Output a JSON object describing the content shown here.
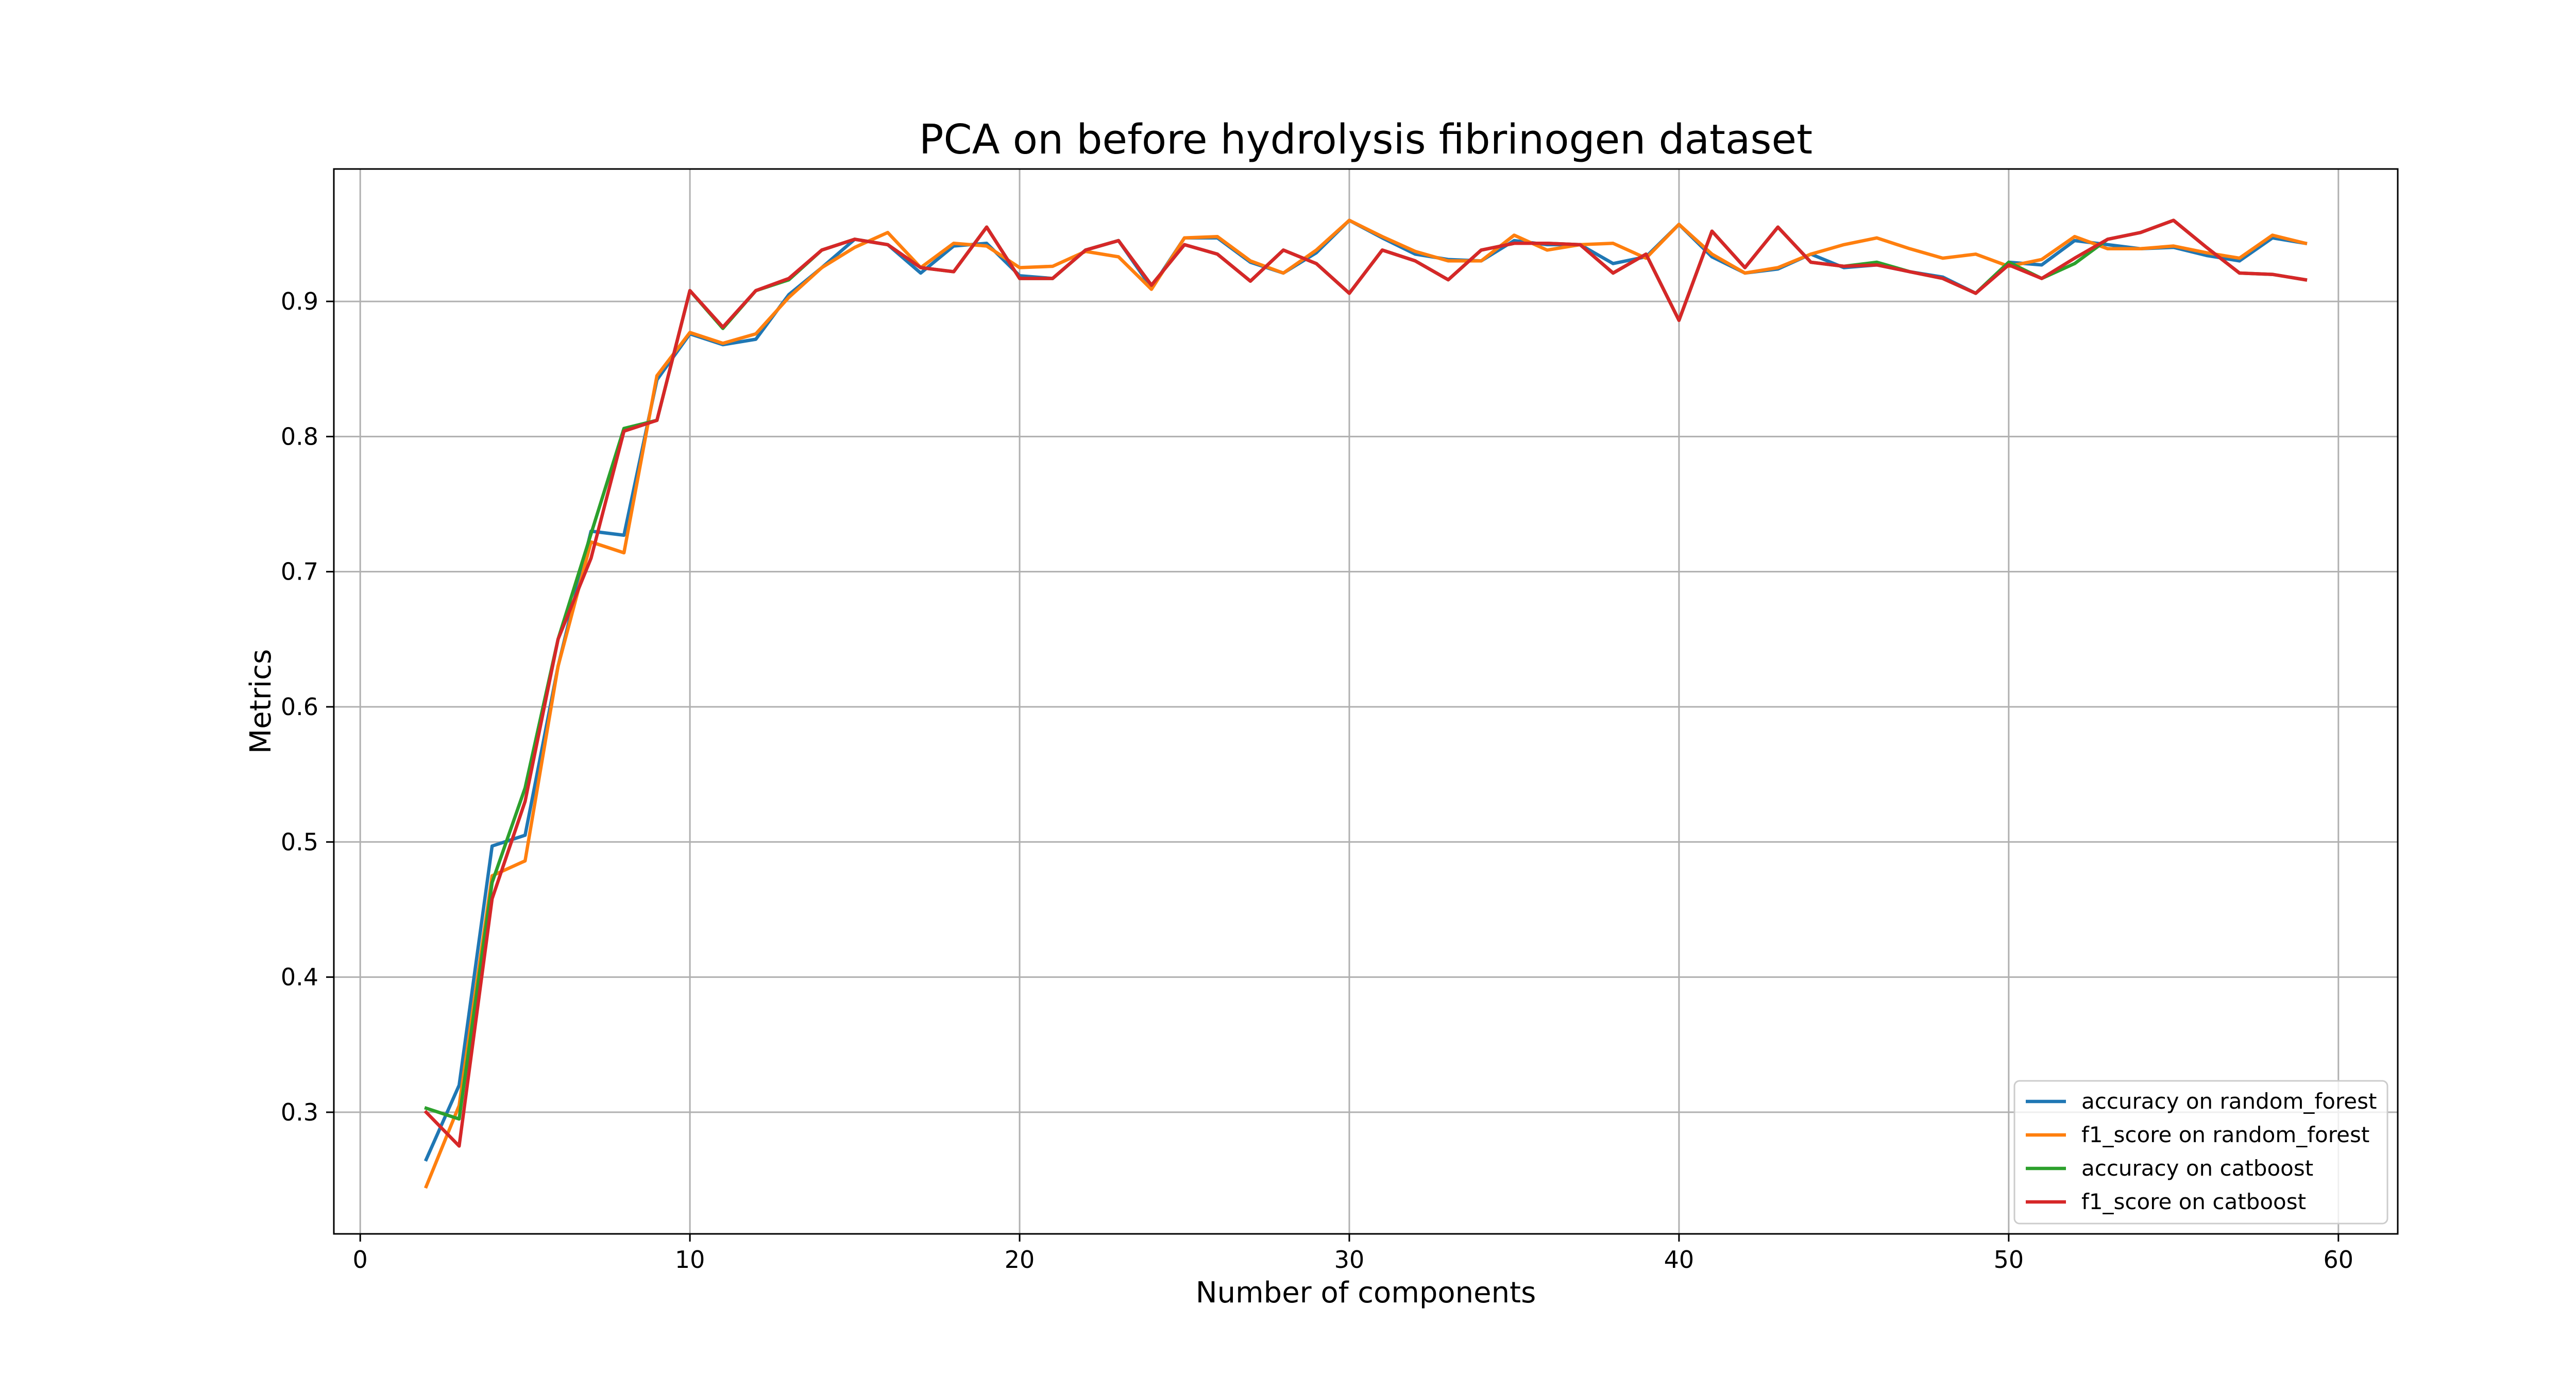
{
  "chart_data": {
    "type": "line",
    "title": "PCA on before hydrolysis fibrinogen dataset",
    "xlabel": "Number of components",
    "ylabel": "Metrics",
    "xlim": [
      -0.8,
      61.8
    ],
    "ylim": [
      0.21,
      0.998
    ],
    "xticks": [
      0,
      10,
      20,
      30,
      40,
      50,
      60
    ],
    "yticks": [
      0.3,
      0.4,
      0.5,
      0.6,
      0.7,
      0.8,
      0.9
    ],
    "grid": true,
    "legend_position": "lower-right",
    "x": [
      2,
      3,
      4,
      5,
      6,
      7,
      8,
      9,
      10,
      11,
      12,
      13,
      14,
      15,
      16,
      17,
      18,
      19,
      20,
      21,
      22,
      23,
      24,
      25,
      26,
      27,
      28,
      29,
      30,
      31,
      32,
      33,
      34,
      35,
      36,
      37,
      38,
      39,
      40,
      41,
      42,
      43,
      44,
      45,
      46,
      47,
      48,
      49,
      50,
      51,
      52,
      53,
      54,
      55,
      56,
      57,
      58,
      59
    ],
    "series": [
      {
        "name": "accuracy on random_forest",
        "color": "#1f77b4",
        "values": [
          0.265,
          0.32,
          0.497,
          0.505,
          0.63,
          0.73,
          0.727,
          0.842,
          0.876,
          0.868,
          0.872,
          0.905,
          0.925,
          0.946,
          0.942,
          0.921,
          0.941,
          0.943,
          0.919,
          0.917,
          0.938,
          0.945,
          0.91,
          0.947,
          0.947,
          0.929,
          0.921,
          0.936,
          0.96,
          0.947,
          0.935,
          0.931,
          0.93,
          0.945,
          0.942,
          0.942,
          0.928,
          0.933,
          0.957,
          0.933,
          0.921,
          0.924,
          0.935,
          0.925,
          0.927,
          0.922,
          0.918,
          0.906,
          0.929,
          0.927,
          0.945,
          0.942,
          0.939,
          0.94,
          0.934,
          0.93,
          0.947,
          0.943
        ]
      },
      {
        "name": "f1_score on random_forest",
        "color": "#ff7f0e",
        "values": [
          0.245,
          0.305,
          0.475,
          0.486,
          0.63,
          0.722,
          0.714,
          0.845,
          0.877,
          0.869,
          0.876,
          0.903,
          0.925,
          0.94,
          0.951,
          0.925,
          0.943,
          0.941,
          0.925,
          0.926,
          0.937,
          0.933,
          0.909,
          0.947,
          0.948,
          0.93,
          0.921,
          0.938,
          0.96,
          0.948,
          0.937,
          0.93,
          0.93,
          0.949,
          0.938,
          0.942,
          0.943,
          0.932,
          0.957,
          0.935,
          0.921,
          0.925,
          0.935,
          0.942,
          0.947,
          0.939,
          0.932,
          0.935,
          0.926,
          0.931,
          0.948,
          0.939,
          0.939,
          0.941,
          0.936,
          0.932,
          0.949,
          0.943
        ]
      },
      {
        "name": "accuracy on catboost",
        "color": "#2ca02c",
        "values": [
          0.303,
          0.295,
          0.47,
          0.54,
          0.65,
          0.728,
          0.806,
          0.812,
          0.908,
          0.88,
          0.908,
          0.916,
          0.938,
          0.946,
          0.942,
          0.925,
          0.922,
          0.955,
          0.917,
          0.917,
          0.938,
          0.945,
          0.912,
          0.942,
          0.935,
          0.915,
          0.938,
          0.928,
          0.906,
          0.938,
          0.93,
          0.916,
          0.938,
          0.943,
          0.943,
          0.942,
          0.921,
          0.935,
          0.886,
          0.952,
          0.925,
          0.955,
          0.929,
          0.926,
          0.929,
          0.922,
          0.917,
          0.906,
          0.929,
          0.917,
          0.928,
          0.946,
          0.951,
          0.96,
          0.94,
          0.921,
          0.92,
          0.916
        ]
      },
      {
        "name": "f1_score on catboost",
        "color": "#d62728",
        "values": [
          0.3,
          0.275,
          0.458,
          0.53,
          0.65,
          0.71,
          0.804,
          0.812,
          0.908,
          0.881,
          0.908,
          0.917,
          0.938,
          0.946,
          0.942,
          0.925,
          0.922,
          0.955,
          0.917,
          0.917,
          0.938,
          0.945,
          0.912,
          0.942,
          0.935,
          0.915,
          0.938,
          0.928,
          0.906,
          0.938,
          0.93,
          0.916,
          0.938,
          0.943,
          0.943,
          0.942,
          0.921,
          0.935,
          0.886,
          0.952,
          0.925,
          0.955,
          0.929,
          0.926,
          0.927,
          0.922,
          0.917,
          0.906,
          0.927,
          0.917,
          0.932,
          0.946,
          0.951,
          0.96,
          0.94,
          0.921,
          0.92,
          0.916
        ]
      }
    ]
  }
}
